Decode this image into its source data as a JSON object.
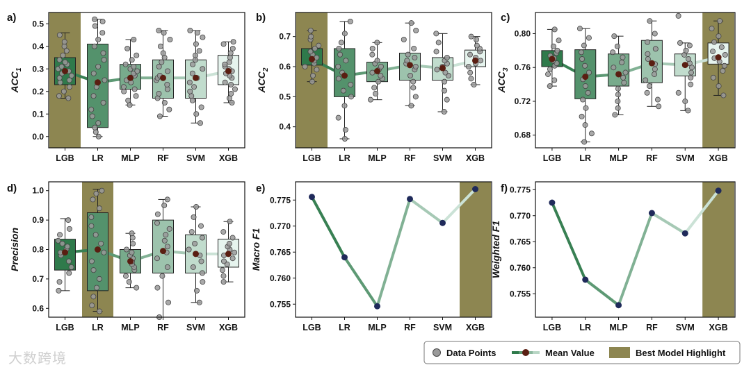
{
  "watermark": "大数跨境",
  "legend": {
    "items": [
      "Data Points",
      "Mean Value",
      "Best Model Highlight"
    ]
  },
  "colors": {
    "highlight": "#8d8651",
    "mean_marker": "#5a1e12",
    "point_fill": "#9a9a9a",
    "point_edge": "#444444",
    "box_shades": [
      "#2f7a4b",
      "#3f8a5b",
      "#6aae8a",
      "#8cc4a8",
      "#b8dcce",
      "#dff0ea"
    ],
    "line_dot": "#1f2a5a"
  },
  "chart_data": [
    {
      "panel_label": "a)",
      "type": "box",
      "ylabel": "ACC",
      "ylabel_sub": "1",
      "categories": [
        "LGB",
        "LR",
        "MLP",
        "RF",
        "SVM",
        "XGB"
      ],
      "highlight": "LGB",
      "ylim": [
        -0.05,
        0.55
      ],
      "yticks": [
        0.0,
        0.1,
        0.2,
        0.3,
        0.4,
        0.5
      ],
      "tick_decimals": 1,
      "boxes": [
        {
          "q1": 0.23,
          "q3": 0.35,
          "wlo": 0.17,
          "whi": 0.46,
          "mean": 0.29,
          "points": [
            0.17,
            0.18,
            0.2,
            0.22,
            0.24,
            0.25,
            0.26,
            0.27,
            0.28,
            0.29,
            0.3,
            0.31,
            0.32,
            0.33,
            0.34,
            0.36,
            0.38,
            0.4,
            0.42,
            0.45
          ]
        },
        {
          "q1": 0.04,
          "q3": 0.41,
          "wlo": 0.0,
          "whi": 0.52,
          "mean": 0.24,
          "points": [
            0.0,
            0.02,
            0.04,
            0.06,
            0.09,
            0.12,
            0.15,
            0.18,
            0.22,
            0.25,
            0.28,
            0.31,
            0.34,
            0.37,
            0.4,
            0.43,
            0.46,
            0.49,
            0.51,
            0.52
          ]
        },
        {
          "q1": 0.21,
          "q3": 0.32,
          "wlo": 0.14,
          "whi": 0.43,
          "mean": 0.26,
          "points": [
            0.14,
            0.16,
            0.18,
            0.2,
            0.21,
            0.22,
            0.24,
            0.25,
            0.26,
            0.27,
            0.28,
            0.29,
            0.3,
            0.31,
            0.32,
            0.34,
            0.36,
            0.39,
            0.43
          ]
        },
        {
          "q1": 0.17,
          "q3": 0.34,
          "wlo": 0.09,
          "whi": 0.47,
          "mean": 0.26,
          "points": [
            0.09,
            0.12,
            0.15,
            0.17,
            0.19,
            0.21,
            0.23,
            0.25,
            0.26,
            0.27,
            0.29,
            0.31,
            0.33,
            0.35,
            0.37,
            0.4,
            0.43,
            0.46,
            0.47
          ]
        },
        {
          "q1": 0.17,
          "q3": 0.34,
          "wlo": 0.06,
          "whi": 0.47,
          "mean": 0.26,
          "points": [
            0.06,
            0.1,
            0.13,
            0.16,
            0.18,
            0.2,
            0.22,
            0.24,
            0.26,
            0.28,
            0.3,
            0.32,
            0.34,
            0.36,
            0.38,
            0.41,
            0.44,
            0.46,
            0.47
          ]
        },
        {
          "q1": 0.23,
          "q3": 0.36,
          "wlo": 0.15,
          "whi": 0.42,
          "mean": 0.29,
          "points": [
            0.15,
            0.17,
            0.19,
            0.21,
            0.23,
            0.24,
            0.26,
            0.27,
            0.28,
            0.29,
            0.3,
            0.31,
            0.32,
            0.33,
            0.35,
            0.37,
            0.39,
            0.41,
            0.42
          ]
        }
      ]
    },
    {
      "panel_label": "b)",
      "type": "box",
      "ylabel": "ACC",
      "ylabel_sub": "2",
      "categories": [
        "LGB",
        "LR",
        "MLP",
        "RF",
        "SVM",
        "XGB"
      ],
      "highlight": "LGB",
      "ylim": [
        0.33,
        0.78
      ],
      "yticks": [
        0.4,
        0.5,
        0.6,
        0.7
      ],
      "tick_decimals": 1,
      "boxes": [
        {
          "q1": 0.605,
          "q3": 0.66,
          "wlo": 0.55,
          "whi": 0.72,
          "mean": 0.625,
          "points": [
            0.55,
            0.57,
            0.59,
            0.6,
            0.61,
            0.62,
            0.63,
            0.64,
            0.65,
            0.66,
            0.67,
            0.69,
            0.7,
            0.72
          ]
        },
        {
          "q1": 0.5,
          "q3": 0.66,
          "wlo": 0.36,
          "whi": 0.75,
          "mean": 0.57,
          "points": [
            0.36,
            0.39,
            0.43,
            0.47,
            0.5,
            0.52,
            0.54,
            0.56,
            0.58,
            0.6,
            0.62,
            0.64,
            0.66,
            0.68,
            0.71,
            0.75
          ]
        },
        {
          "q1": 0.55,
          "q3": 0.615,
          "wlo": 0.49,
          "whi": 0.68,
          "mean": 0.585,
          "points": [
            0.49,
            0.51,
            0.53,
            0.55,
            0.56,
            0.57,
            0.58,
            0.59,
            0.6,
            0.61,
            0.62,
            0.64,
            0.66,
            0.68
          ]
        },
        {
          "q1": 0.555,
          "q3": 0.645,
          "wlo": 0.47,
          "whi": 0.745,
          "mean": 0.605,
          "points": [
            0.47,
            0.5,
            0.53,
            0.55,
            0.57,
            0.59,
            0.6,
            0.61,
            0.62,
            0.63,
            0.64,
            0.66,
            0.69,
            0.72,
            0.745
          ]
        },
        {
          "q1": 0.555,
          "q3": 0.63,
          "wlo": 0.45,
          "whi": 0.71,
          "mean": 0.595,
          "points": [
            0.45,
            0.49,
            0.52,
            0.55,
            0.57,
            0.58,
            0.59,
            0.6,
            0.61,
            0.62,
            0.63,
            0.65,
            0.68,
            0.71
          ]
        },
        {
          "q1": 0.6,
          "q3": 0.655,
          "wlo": 0.54,
          "whi": 0.7,
          "mean": 0.62,
          "points": [
            0.54,
            0.56,
            0.58,
            0.6,
            0.61,
            0.62,
            0.63,
            0.64,
            0.65,
            0.66,
            0.67,
            0.69,
            0.7
          ]
        }
      ]
    },
    {
      "panel_label": "c)",
      "type": "box",
      "ylabel": "ACC",
      "ylabel_sub": "3",
      "categories": [
        "LGB",
        "LR",
        "MLP",
        "RF",
        "SVM",
        "XGB"
      ],
      "highlight": "XGB",
      "ylim": [
        0.665,
        0.825
      ],
      "yticks": [
        0.68,
        0.72,
        0.76,
        0.8
      ],
      "tick_decimals": 2,
      "boxes": [
        {
          "q1": 0.761,
          "q3": 0.78,
          "wlo": 0.738,
          "whi": 0.805,
          "mean": 0.77,
          "points": [
            0.738,
            0.745,
            0.752,
            0.758,
            0.762,
            0.765,
            0.768,
            0.771,
            0.774,
            0.777,
            0.78,
            0.785,
            0.792,
            0.805
          ]
        },
        {
          "q1": 0.723,
          "q3": 0.781,
          "wlo": 0.672,
          "whi": 0.806,
          "mean": 0.749,
          "points": [
            0.672,
            0.682,
            0.692,
            0.702,
            0.712,
            0.722,
            0.73,
            0.738,
            0.746,
            0.754,
            0.762,
            0.77,
            0.778,
            0.786,
            0.795,
            0.806
          ]
        },
        {
          "q1": 0.738,
          "q3": 0.776,
          "wlo": 0.704,
          "whi": 0.797,
          "mean": 0.752,
          "points": [
            0.704,
            0.712,
            0.72,
            0.728,
            0.735,
            0.742,
            0.748,
            0.754,
            0.76,
            0.766,
            0.772,
            0.778,
            0.785,
            0.797
          ]
        },
        {
          "q1": 0.742,
          "q3": 0.792,
          "wlo": 0.714,
          "whi": 0.815,
          "mean": 0.765,
          "points": [
            0.714,
            0.722,
            0.73,
            0.738,
            0.745,
            0.752,
            0.758,
            0.764,
            0.77,
            0.776,
            0.782,
            0.79,
            0.8,
            0.815
          ]
        },
        {
          "q1": 0.75,
          "q3": 0.776,
          "wlo": 0.709,
          "whi": 0.789,
          "mean": 0.763,
          "points": [
            0.709,
            0.72,
            0.73,
            0.74,
            0.748,
            0.754,
            0.76,
            0.765,
            0.77,
            0.775,
            0.78,
            0.786,
            0.789,
            0.821
          ]
        },
        {
          "q1": 0.764,
          "q3": 0.789,
          "wlo": 0.727,
          "whi": 0.815,
          "mean": 0.772,
          "points": [
            0.727,
            0.738,
            0.748,
            0.756,
            0.762,
            0.767,
            0.771,
            0.775,
            0.779,
            0.784,
            0.79,
            0.797,
            0.806,
            0.815
          ]
        }
      ]
    },
    {
      "panel_label": "d)",
      "type": "box",
      "ylabel": "Precision",
      "ylabel_sub": "",
      "categories": [
        "LGB",
        "LR",
        "MLP",
        "RF",
        "SVM",
        "XGB"
      ],
      "highlight": "LR",
      "ylim": [
        0.57,
        1.03
      ],
      "yticks": [
        0.6,
        0.7,
        0.8,
        0.9,
        1.0
      ],
      "tick_decimals": 1,
      "boxes": [
        {
          "q1": 0.73,
          "q3": 0.835,
          "wlo": 0.66,
          "whi": 0.905,
          "mean": 0.79,
          "points": [
            0.66,
            0.69,
            0.72,
            0.74,
            0.76,
            0.78,
            0.79,
            0.8,
            0.81,
            0.82,
            0.83,
            0.85,
            0.87,
            0.9
          ]
        },
        {
          "q1": 0.66,
          "q3": 0.925,
          "wlo": 0.59,
          "whi": 1.005,
          "mean": 0.8,
          "points": [
            0.59,
            0.61,
            0.64,
            0.67,
            0.7,
            0.73,
            0.76,
            0.79,
            0.82,
            0.85,
            0.88,
            0.91,
            0.94,
            0.97,
            0.99,
            1.0
          ]
        },
        {
          "q1": 0.72,
          "q3": 0.8,
          "wlo": 0.67,
          "whi": 0.855,
          "mean": 0.76,
          "points": [
            0.67,
            0.69,
            0.71,
            0.73,
            0.74,
            0.75,
            0.76,
            0.77,
            0.78,
            0.79,
            0.8,
            0.82,
            0.84,
            0.855
          ]
        },
        {
          "q1": 0.72,
          "q3": 0.9,
          "wlo": 0.57,
          "whi": 0.97,
          "mean": 0.795,
          "points": [
            0.57,
            0.62,
            0.67,
            0.71,
            0.74,
            0.77,
            0.79,
            0.81,
            0.83,
            0.85,
            0.87,
            0.89,
            0.92,
            0.95,
            0.97
          ]
        },
        {
          "q1": 0.72,
          "q3": 0.85,
          "wlo": 0.62,
          "whi": 0.945,
          "mean": 0.785,
          "points": [
            0.62,
            0.66,
            0.69,
            0.72,
            0.74,
            0.76,
            0.78,
            0.8,
            0.82,
            0.84,
            0.86,
            0.88,
            0.91,
            0.945
          ]
        },
        {
          "q1": 0.74,
          "q3": 0.835,
          "wlo": 0.69,
          "whi": 0.895,
          "mean": 0.785,
          "points": [
            0.69,
            0.71,
            0.73,
            0.75,
            0.76,
            0.77,
            0.78,
            0.79,
            0.8,
            0.81,
            0.82,
            0.84,
            0.86,
            0.895
          ]
        }
      ]
    },
    {
      "panel_label": "e)",
      "type": "line",
      "ylabel": "Macro F1",
      "categories": [
        "LGB",
        "LR",
        "MLP",
        "RF",
        "SVM",
        "XGB"
      ],
      "highlight": "XGB",
      "values": [
        0.7756,
        0.764,
        0.7546,
        0.7752,
        0.7706,
        0.7771
      ],
      "ylim": [
        0.7525,
        0.7785
      ],
      "yticks": [
        0.755,
        0.76,
        0.765,
        0.77,
        0.775
      ],
      "tick_decimals": 3
    },
    {
      "panel_label": "f)",
      "type": "line",
      "ylabel": "Weighted F1",
      "categories": [
        "LGB",
        "LR",
        "MLP",
        "RF",
        "SVM",
        "XGB"
      ],
      "highlight": "XGB",
      "values": [
        0.7725,
        0.7577,
        0.7528,
        0.7705,
        0.7666,
        0.7748
      ],
      "ylim": [
        0.7505,
        0.7765
      ],
      "yticks": [
        0.755,
        0.76,
        0.765,
        0.77,
        0.775
      ],
      "tick_decimals": 3
    }
  ]
}
